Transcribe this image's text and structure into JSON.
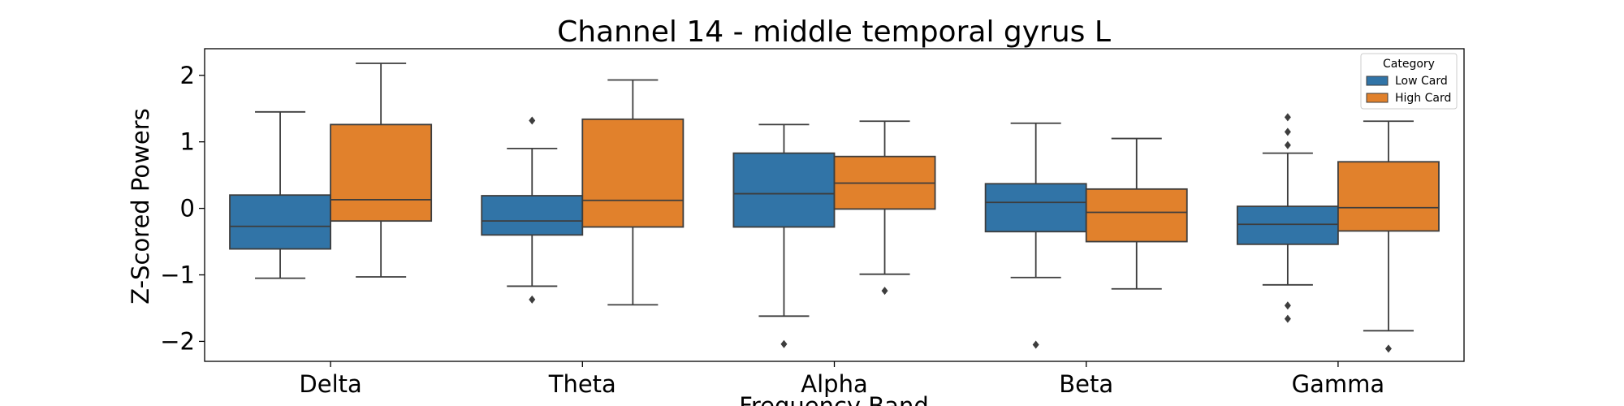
{
  "chart_data": {
    "type": "boxplot",
    "title": "Channel 14 - middle temporal gyrus L",
    "xlabel": "Frequency Band",
    "ylabel": "Z-Scored Powers",
    "categories": [
      "Delta",
      "Theta",
      "Alpha",
      "Beta",
      "Gamma"
    ],
    "ylim": [
      -2.3,
      2.4
    ],
    "yticks": [
      -2,
      -1,
      0,
      1,
      2
    ],
    "ytick_labels": [
      "−2",
      "−1",
      "0",
      "1",
      "2"
    ],
    "grid": false,
    "legend": {
      "title": "Category",
      "placement": "top-right"
    },
    "series": [
      {
        "name": "Low Card",
        "color": "#3174a7",
        "boxes": [
          {
            "q1": -0.61,
            "median": -0.27,
            "q3": 0.2,
            "whisker_low": -1.05,
            "whisker_high": 1.45,
            "outliers": []
          },
          {
            "q1": -0.4,
            "median": -0.19,
            "q3": 0.19,
            "whisker_low": -1.17,
            "whisker_high": 0.9,
            "outliers": [
              1.32,
              -1.37
            ]
          },
          {
            "q1": -0.28,
            "median": 0.22,
            "q3": 0.83,
            "whisker_low": -1.62,
            "whisker_high": 1.26,
            "outliers": [
              -2.04
            ]
          },
          {
            "q1": -0.35,
            "median": 0.09,
            "q3": 0.37,
            "whisker_low": -1.04,
            "whisker_high": 1.28,
            "outliers": [
              -2.05
            ]
          },
          {
            "q1": -0.54,
            "median": -0.24,
            "q3": 0.03,
            "whisker_low": -1.15,
            "whisker_high": 0.83,
            "outliers": [
              1.37,
              1.15,
              0.95,
              -1.46,
              -1.66
            ]
          }
        ]
      },
      {
        "name": "High Card",
        "color": "#e1812c",
        "boxes": [
          {
            "q1": -0.19,
            "median": 0.13,
            "q3": 1.26,
            "whisker_low": -1.03,
            "whisker_high": 2.18,
            "outliers": []
          },
          {
            "q1": -0.28,
            "median": 0.12,
            "q3": 1.34,
            "whisker_low": -1.45,
            "whisker_high": 1.93,
            "outliers": []
          },
          {
            "q1": -0.01,
            "median": 0.38,
            "q3": 0.78,
            "whisker_low": -0.99,
            "whisker_high": 1.31,
            "outliers": [
              -1.24
            ]
          },
          {
            "q1": -0.5,
            "median": -0.06,
            "q3": 0.29,
            "whisker_low": -1.21,
            "whisker_high": 1.05,
            "outliers": []
          },
          {
            "q1": -0.34,
            "median": 0.01,
            "q3": 0.7,
            "whisker_low": -1.84,
            "whisker_high": 1.31,
            "outliers": [
              -2.11
            ]
          }
        ]
      }
    ]
  }
}
